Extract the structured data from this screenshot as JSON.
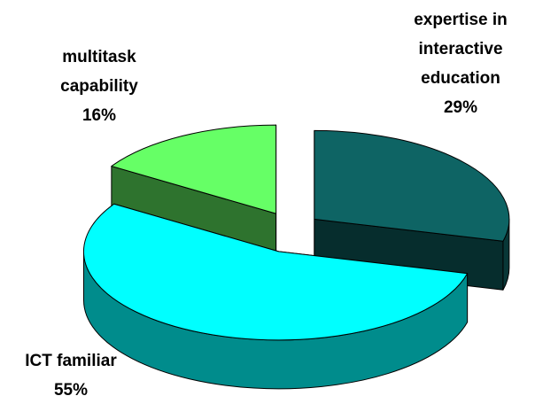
{
  "chart_data": {
    "type": "pie",
    "style": "3d-exploded",
    "categories": [
      "expertise in interactive education",
      "ICT familiar",
      "multitask capability"
    ],
    "values": [
      29,
      55,
      16
    ],
    "value_labels": [
      "29%",
      "55%",
      "16%"
    ],
    "colors": [
      "#0e6464",
      "#00ffff",
      "#66ff66"
    ]
  }
}
